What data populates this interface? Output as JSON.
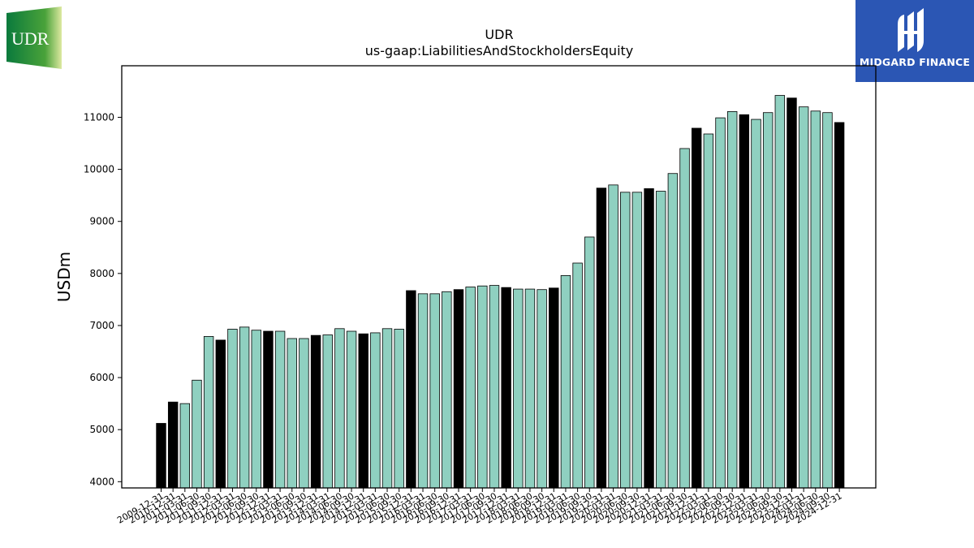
{
  "logos": {
    "left": {
      "text": "UDR",
      "icon": "udr-logo-icon"
    },
    "right": {
      "text": "MIDGARD FINANCE",
      "icon": "midgard-finance-logo-icon"
    }
  },
  "colors": {
    "bar_light": "#8fd0c0",
    "bar_dark": "#000000",
    "brand_blue": "#2b56b4",
    "udr_green": "#0a7a3c"
  },
  "chart_data": {
    "type": "bar",
    "title": "UDR",
    "subtitle": "us-gaap:LiabilitiesAndStockholdersEquity",
    "ylabel": "USDm",
    "xlabel": "",
    "ylim": [
      3880,
      11990
    ],
    "yticks": [
      4000,
      5000,
      6000,
      7000,
      8000,
      9000,
      10000,
      11000
    ],
    "grid": false,
    "legend": "none",
    "categories": [
      "2009-12-31",
      "2010-12-31",
      "2011-03-31",
      "2011-06-30",
      "2011-09-30",
      "2011-12-31",
      "2012-03-31",
      "2012-06-30",
      "2012-09-30",
      "2012-12-31",
      "2013-03-31",
      "2013-06-30",
      "2013-09-30",
      "2013-12-31",
      "2014-03-31",
      "2014-06-30",
      "2014-09-30",
      "2014-12-31",
      "2015-03-31",
      "2015-06-30",
      "2015-09-30",
      "2015-12-31",
      "2016-03-31",
      "2016-06-30",
      "2016-09-30",
      "2016-12-31",
      "2017-03-31",
      "2017-06-30",
      "2017-09-30",
      "2017-12-31",
      "2018-03-31",
      "2018-06-30",
      "2018-09-30",
      "2018-12-31",
      "2019-03-31",
      "2019-06-30",
      "2019-09-30",
      "2019-12-31",
      "2020-03-31",
      "2020-06-30",
      "2020-09-30",
      "2020-12-31",
      "2021-03-31",
      "2021-06-30",
      "2021-09-30",
      "2021-12-31",
      "2022-03-31",
      "2022-06-30",
      "2022-09-30",
      "2022-12-31",
      "2023-03-31",
      "2023-06-30",
      "2023-09-30",
      "2023-12-31",
      "2024-03-31",
      "2024-06-30",
      "2024-09-30",
      "2024-12-31"
    ],
    "values": [
      5120,
      5530,
      5500,
      5950,
      6790,
      6720,
      6930,
      6970,
      6910,
      6890,
      6890,
      6750,
      6750,
      6810,
      6820,
      6940,
      6890,
      6840,
      6860,
      6940,
      6930,
      7670,
      7610,
      7610,
      7650,
      7690,
      7740,
      7760,
      7770,
      7730,
      7700,
      7700,
      7690,
      7720,
      7960,
      8200,
      8700,
      9640,
      9700,
      9560,
      9560,
      9630,
      9580,
      9920,
      10400,
      10790,
      10680,
      10990,
      11110,
      11050,
      10960,
      11090,
      11420,
      11370,
      11200,
      11120,
      11090,
      10900
    ],
    "dark_bar_indices": [
      0,
      1,
      5,
      9,
      13,
      17,
      21,
      25,
      29,
      33,
      37,
      41,
      45,
      49,
      53,
      57
    ]
  }
}
